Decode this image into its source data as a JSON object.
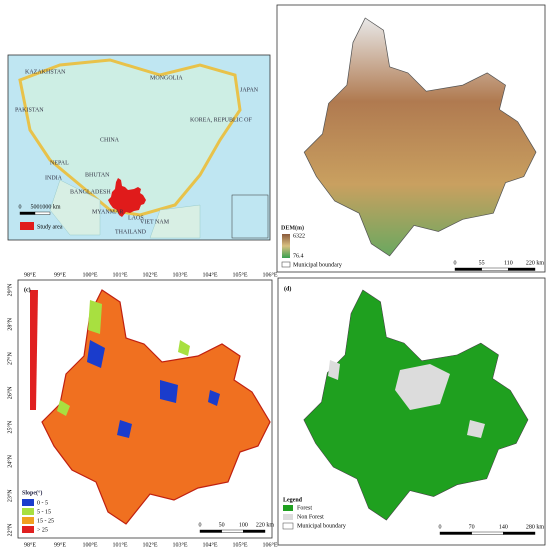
{
  "panel_a": {
    "countries": [
      "MONGOLIA",
      "CHINA",
      "INDIA",
      "NEPAL",
      "BHUTAN",
      "MYANMAR",
      "THAILAND",
      "LAOS",
      "VIET NAM",
      "JAPAN",
      "KOREA, REPUBLIC OF",
      "BANGLADESH",
      "PAKISTAN",
      "KAZAKHSTAN"
    ],
    "legend": "Study area",
    "scale": [
      "0",
      "500",
      "1000 km"
    ]
  },
  "panel_b": {
    "legend_title": "DEM(m)",
    "max": "6322",
    "min": "76.4",
    "boundary": "Municipal boundary",
    "scale": [
      "0",
      "55",
      "110",
      "220 km"
    ]
  },
  "panel_c": {
    "label": "(c)",
    "lon": [
      "98°E",
      "99°E",
      "100°E",
      "101°E",
      "102°E",
      "103°E",
      "104°E",
      "105°E",
      "106°E"
    ],
    "lat": [
      "29°N",
      "28°N",
      "27°N",
      "26°N",
      "25°N",
      "24°N",
      "23°N",
      "22°N"
    ],
    "legend_title": "Slope(°)",
    "classes": [
      "0 - 5",
      "5 - 15",
      "15 - 25",
      "> 25"
    ],
    "scale": [
      "0",
      "50",
      "100",
      "220 km"
    ]
  },
  "panel_d": {
    "label": "(d)",
    "legend_title": "Legend",
    "classes": [
      "Forest",
      "Non Forest",
      "Municipal boundary"
    ],
    "scale": [
      "0",
      "70",
      "140",
      "280 km"
    ]
  }
}
